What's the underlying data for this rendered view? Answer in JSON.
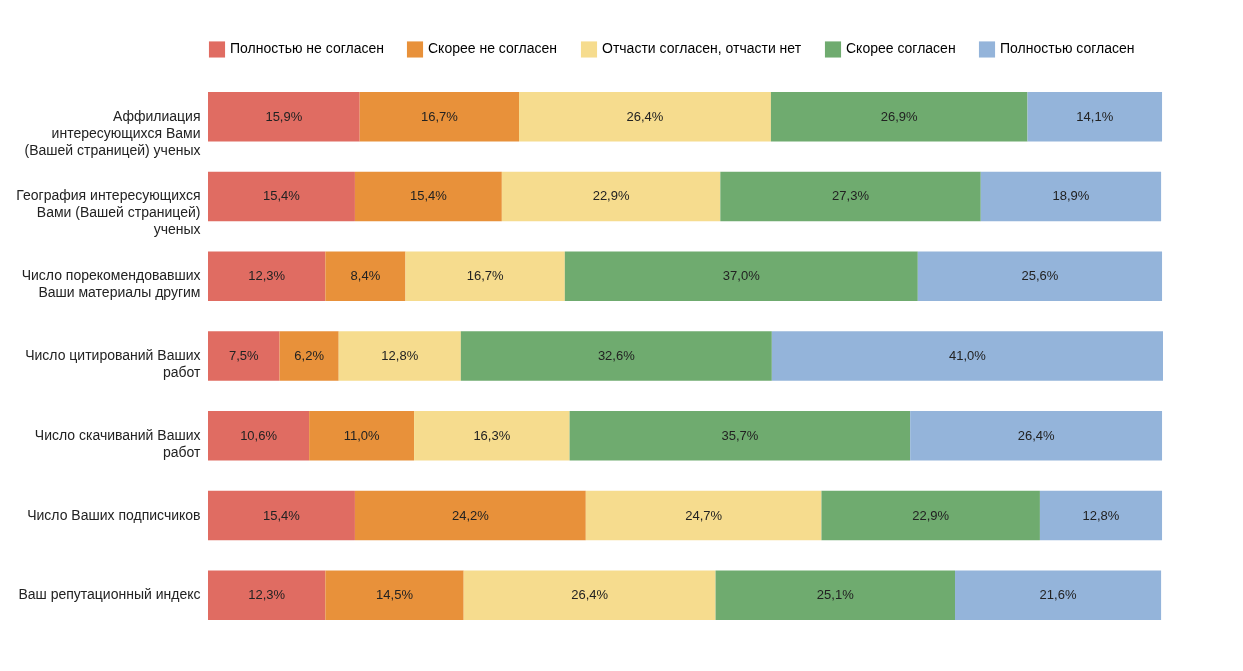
{
  "chart_data": {
    "type": "bar",
    "orientation": "horizontal",
    "stacked": true,
    "legend": "top",
    "categories": [
      "Аффилиация интересующихся Вами (Вашей страницей) ученых",
      "География интересующихся Вами (Вашей страницей) ученых",
      "Число порекомендовавших Ваши материалы другим",
      "Число цитирований Ваших работ",
      "Число скачиваний Ваших работ",
      "Число Ваших подписчиков",
      "Ваш репутационный индекс"
    ],
    "series": [
      {
        "name": "Полностью не согласен",
        "color": "#e06c62",
        "values": [
          15.9,
          15.4,
          12.3,
          7.5,
          10.6,
          15.4,
          12.3
        ],
        "value_labels": [
          "15,9%",
          "15,4%",
          "12,3%",
          "7,5%",
          "10,6%",
          "15,4%",
          "12,3%"
        ]
      },
      {
        "name": "Скорее не согласен",
        "color": "#e8913a",
        "values": [
          16.7,
          15.4,
          8.4,
          6.2,
          11.0,
          24.2,
          14.5
        ],
        "value_labels": [
          "16,7%",
          "15,4%",
          "8,4%",
          "6,2%",
          "11,0%",
          "24,2%",
          "14,5%"
        ]
      },
      {
        "name": "Отчасти согласен, отчасти нет",
        "color": "#f6dc8e",
        "values": [
          26.4,
          22.9,
          16.7,
          12.8,
          16.3,
          24.7,
          26.4
        ],
        "value_labels": [
          "26,4%",
          "22,9%",
          "16,7%",
          "12,8%",
          "16,3%",
          "24,7%",
          "26,4%"
        ]
      },
      {
        "name": "Скорее согласен",
        "color": "#6fab6f",
        "values": [
          26.9,
          27.3,
          37.0,
          32.6,
          35.7,
          22.9,
          25.1
        ],
        "value_labels": [
          "26,9%",
          "27,3%",
          "37,0%",
          "32,6%",
          "35,7%",
          "22,9%",
          "25,1%"
        ]
      },
      {
        "name": "Полностью согласен",
        "color": "#94b4da",
        "values": [
          14.1,
          18.9,
          25.6,
          41.0,
          26.4,
          12.8,
          21.6
        ],
        "value_labels": [
          "14,1%",
          "18,9%",
          "25,6%",
          "41,0%",
          "26,4%",
          "12,8%",
          "21,6%"
        ]
      }
    ]
  }
}
